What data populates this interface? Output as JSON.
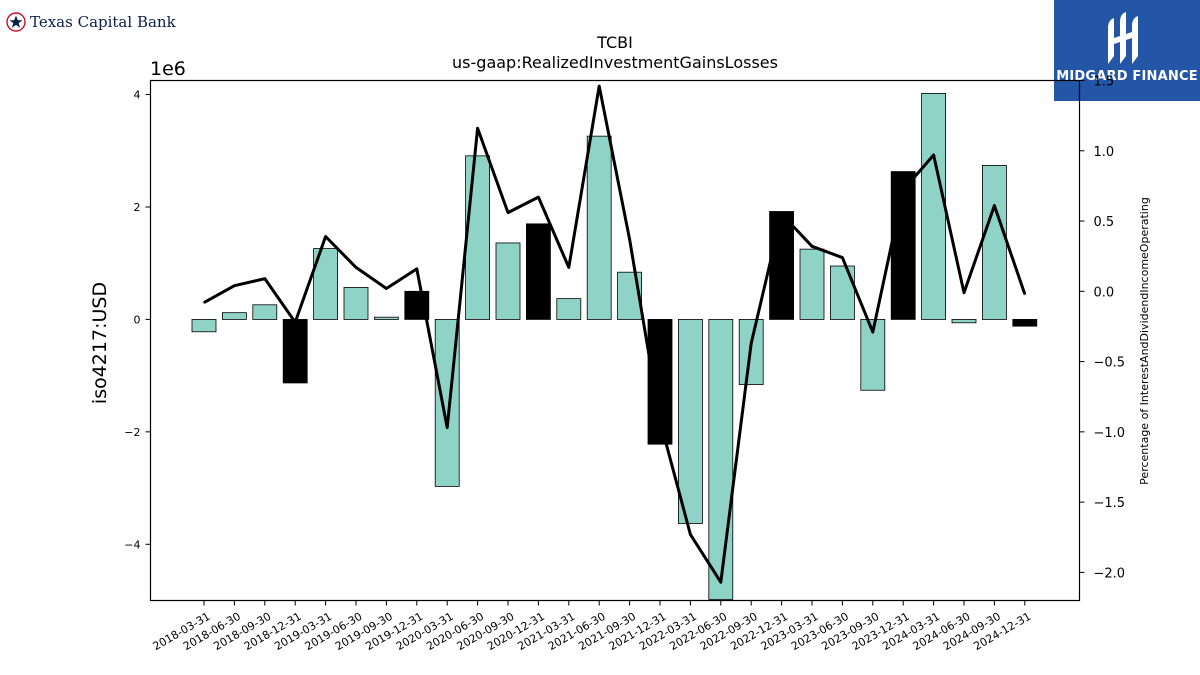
{
  "brand_left": {
    "name": "Texas Capital Bank"
  },
  "brand_right": {
    "name": "MIDGARD FINANCE"
  },
  "chart_data": {
    "type": "bar",
    "title": "TCBI",
    "subtitle": "us-gaap:RealizedInvestmentGainsLosses",
    "ylabel": "iso4217:USD",
    "y2label": "Percentage of InterestAndDividendIncomeOperating",
    "y_offset_text": "1e6",
    "ylim": [
      -5.0,
      4.25
    ],
    "y2lim": [
      -2.2,
      1.5
    ],
    "y_ticks": [
      4,
      2,
      0,
      -2,
      -4
    ],
    "y_tick_labels": [
      "4",
      "2",
      "0",
      "−2",
      "−4"
    ],
    "y2_ticks": [
      1.5,
      1.0,
      0.5,
      0.0,
      -0.5,
      -1.0,
      -1.5,
      -2.0
    ],
    "y2_tick_labels": [
      "1.5",
      "1.0",
      "0.5",
      "0.0",
      "−0.5",
      "−1.0",
      "−1.5",
      "−2.0"
    ],
    "categories": [
      "2018-03-31",
      "2018-06-30",
      "2018-09-30",
      "2018-12-31",
      "2019-03-31",
      "2019-06-30",
      "2019-09-30",
      "2019-12-31",
      "2020-03-31",
      "2020-06-30",
      "2020-09-30",
      "2020-12-31",
      "2021-03-31",
      "2021-06-30",
      "2021-09-30",
      "2021-12-31",
      "2022-03-31",
      "2022-06-30",
      "2022-09-30",
      "2022-12-31",
      "2023-03-31",
      "2023-06-30",
      "2023-09-30",
      "2023-12-31",
      "2024-03-31",
      "2024-06-30",
      "2024-09-30",
      "2024-12-31"
    ],
    "series": [
      {
        "values": [
          -0.22,
          0.12,
          0.26,
          -1.13,
          1.26,
          0.57,
          0.04,
          0.5,
          -2.97,
          2.91,
          1.36,
          1.7,
          0.37,
          3.26,
          0.84,
          -2.22,
          -3.63,
          -4.98,
          -1.16,
          1.92,
          1.25,
          0.95,
          -1.26,
          2.63,
          4.02,
          -0.06,
          2.74,
          -0.12
        ]
      },
      {
        "axis": "right",
        "values": [
          -0.08,
          0.04,
          0.09,
          -0.22,
          0.39,
          0.17,
          0.02,
          0.16,
          -0.97,
          1.16,
          0.56,
          0.67,
          0.17,
          1.46,
          0.37,
          -0.92,
          -1.73,
          -2.07,
          -0.37,
          0.55,
          0.32,
          0.24,
          -0.29,
          0.72,
          0.97,
          -0.01,
          0.61,
          -0.02
        ]
      }
    ],
    "highlight_indices": [
      3,
      7,
      11,
      15,
      19,
      23,
      27
    ],
    "colors": {
      "bar": "#8fd3c6",
      "bar_highlight": "#000000",
      "line": "#000000",
      "axes": "#000000"
    }
  }
}
